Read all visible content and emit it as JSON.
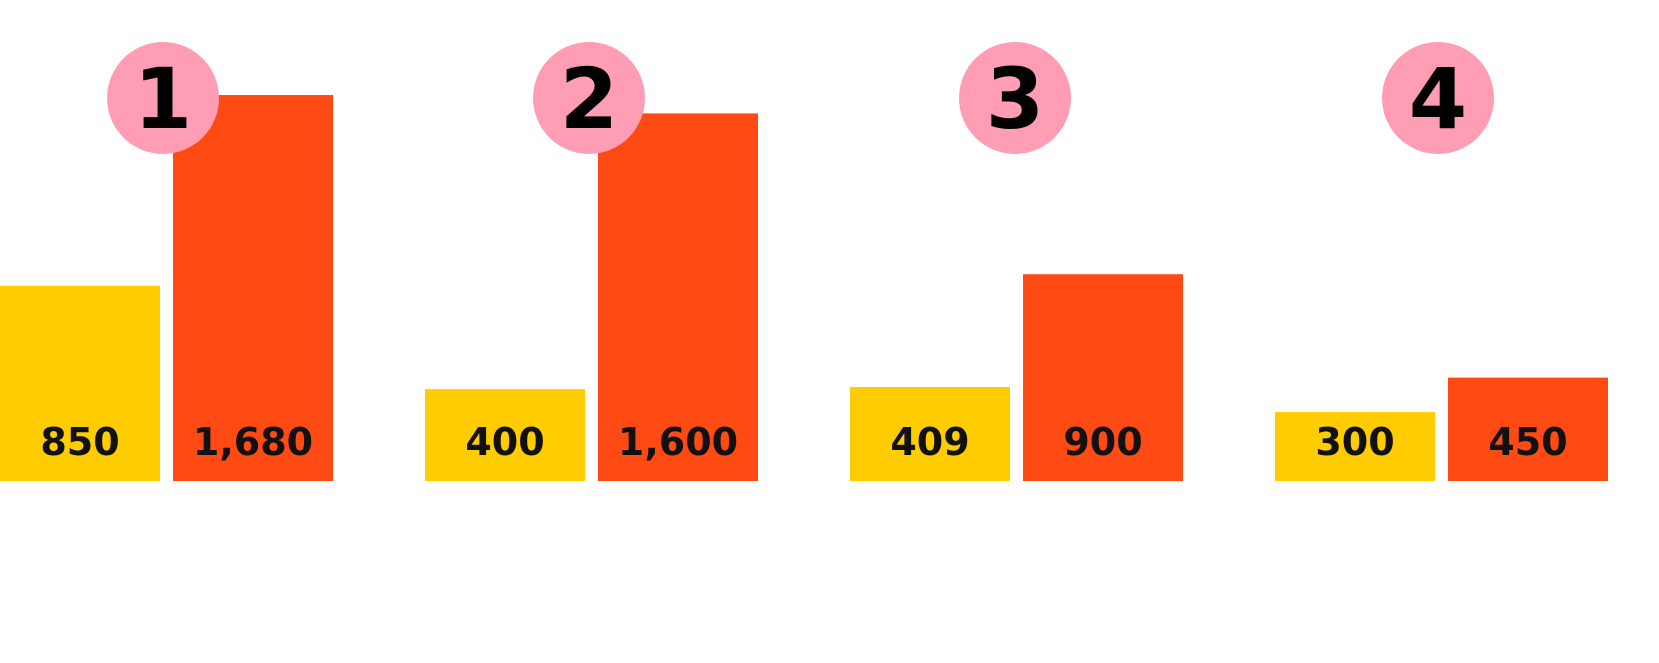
{
  "colors": {
    "background": "#ffffff",
    "series_a": "#ffcc00",
    "series_b": "#ff4a14",
    "badge": "#ff9db4",
    "text": "#111111"
  },
  "chart_data": {
    "type": "bar",
    "title": "",
    "xlabel": "",
    "ylabel": "",
    "categories": [
      "1",
      "2",
      "3",
      "4"
    ],
    "series": [
      {
        "values": [
          850,
          400,
          409,
          300
        ],
        "labels": [
          "850",
          "400",
          "409",
          "300"
        ],
        "color": "#ffcc00"
      },
      {
        "values": [
          1680,
          1600,
          900,
          450
        ],
        "labels": [
          "1,680",
          "1,600",
          "900",
          "450"
        ],
        "color": "#ff4a14"
      }
    ],
    "grid": false,
    "legend": "none",
    "ylim": [
      0,
      1700
    ]
  }
}
